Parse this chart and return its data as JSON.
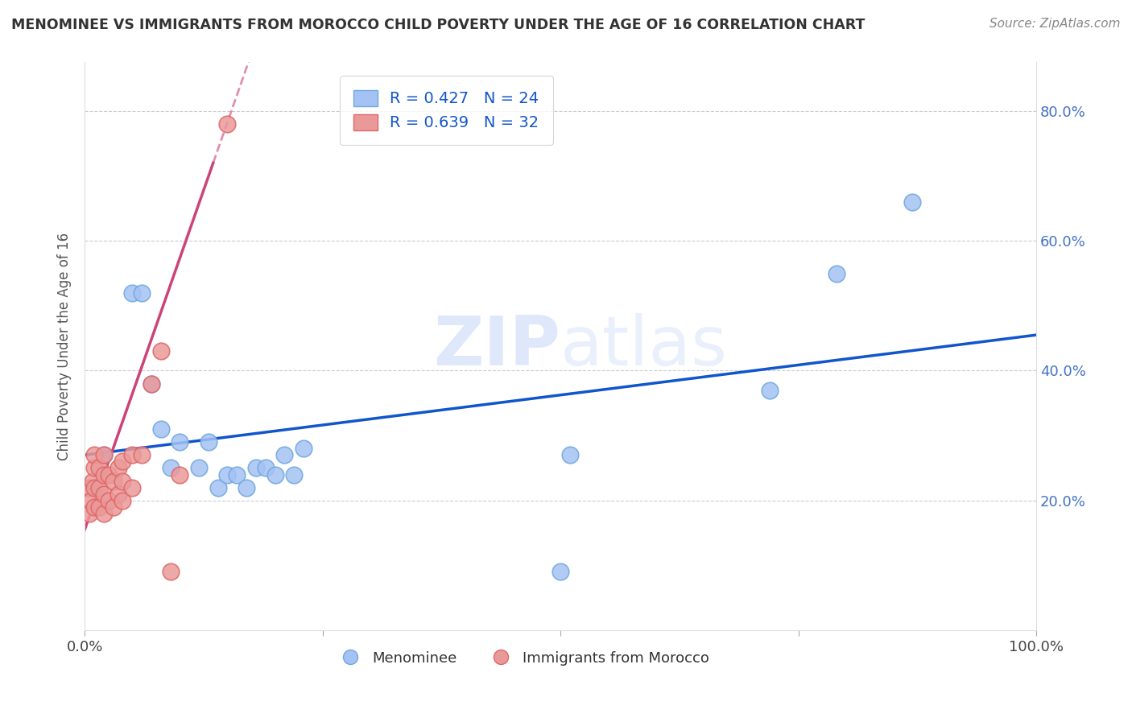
{
  "title": "MENOMINEE VS IMMIGRANTS FROM MOROCCO CHILD POVERTY UNDER THE AGE OF 16 CORRELATION CHART",
  "source": "Source: ZipAtlas.com",
  "ylabel": "Child Poverty Under the Age of 16",
  "xlim": [
    0,
    1.0
  ],
  "ylim": [
    0,
    0.875
  ],
  "xticks": [
    0.0,
    0.25,
    0.5,
    0.75,
    1.0
  ],
  "xticklabels": [
    "0.0%",
    "",
    "",
    "",
    "100.0%"
  ],
  "yticks": [
    0.2,
    0.4,
    0.6,
    0.8
  ],
  "yticklabels": [
    "20.0%",
    "40.0%",
    "60.0%",
    "80.0%"
  ],
  "watermark": "ZIPatlas",
  "legend_blue_r": "0.427",
  "legend_blue_n": "24",
  "legend_pink_r": "0.639",
  "legend_pink_n": "32",
  "legend_label_blue": "Menominee",
  "legend_label_pink": "Immigrants from Morocco",
  "blue_scatter_color": "#a4c2f4",
  "pink_scatter_color": "#ea9999",
  "blue_scatter_edge": "#6fa8dc",
  "pink_scatter_edge": "#e06666",
  "blue_line_color": "#1155cc",
  "pink_line_color": "#cc4477",
  "menominee_x": [
    0.02,
    0.05,
    0.06,
    0.07,
    0.08,
    0.09,
    0.1,
    0.12,
    0.13,
    0.14,
    0.15,
    0.16,
    0.17,
    0.18,
    0.19,
    0.2,
    0.21,
    0.22,
    0.23,
    0.5,
    0.51,
    0.72,
    0.79,
    0.87
  ],
  "menominee_y": [
    0.27,
    0.52,
    0.52,
    0.38,
    0.31,
    0.25,
    0.29,
    0.25,
    0.29,
    0.22,
    0.24,
    0.24,
    0.22,
    0.25,
    0.25,
    0.24,
    0.27,
    0.24,
    0.28,
    0.09,
    0.27,
    0.37,
    0.55,
    0.66
  ],
  "morocco_x": [
    0.005,
    0.005,
    0.007,
    0.008,
    0.01,
    0.01,
    0.01,
    0.01,
    0.015,
    0.015,
    0.015,
    0.02,
    0.02,
    0.02,
    0.02,
    0.025,
    0.025,
    0.03,
    0.03,
    0.035,
    0.035,
    0.04,
    0.04,
    0.04,
    0.05,
    0.05,
    0.06,
    0.07,
    0.08,
    0.09,
    0.1,
    0.15
  ],
  "morocco_y": [
    0.22,
    0.18,
    0.2,
    0.23,
    0.19,
    0.22,
    0.25,
    0.27,
    0.19,
    0.22,
    0.25,
    0.18,
    0.21,
    0.24,
    0.27,
    0.2,
    0.24,
    0.19,
    0.23,
    0.21,
    0.25,
    0.2,
    0.23,
    0.26,
    0.22,
    0.27,
    0.27,
    0.38,
    0.43,
    0.09,
    0.24,
    0.78
  ],
  "grid_color": "#cccccc",
  "bg_color": "#ffffff",
  "fig_bg_color": "#ffffff"
}
